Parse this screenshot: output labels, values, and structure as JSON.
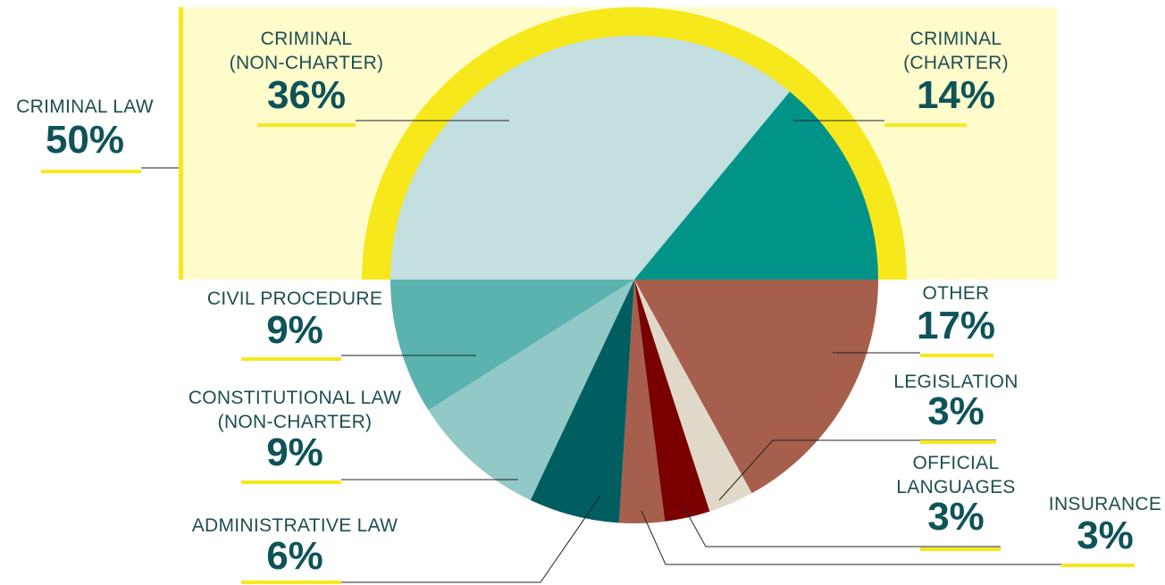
{
  "chart_data": {
    "type": "pie",
    "categories": [
      "CRIMINAL\n(NON-CHARTER)",
      "CRIMINAL\n(CHARTER)",
      "OTHER",
      "LEGISLATION",
      "OFFICIAL\nLANGUAGES",
      "INSURANCE",
      "ADMINISTRATIVE LAW",
      "CONSTITUTIONAL LAW\n(NON-CHARTER)",
      "CIVIL PROCEDURE"
    ],
    "values": [
      36,
      14,
      17,
      3,
      3,
      3,
      6,
      9,
      9
    ],
    "value_labels": [
      "36%",
      "14%",
      "17%",
      "3%",
      "3%",
      "3%",
      "6%",
      "9%",
      "9%"
    ],
    "colors": [
      "#c3dfdf",
      "#009488",
      "#a65e4d",
      "#e0d9c9",
      "#7a0000",
      "#a65e4d",
      "#005e60",
      "#92c8c6",
      "#5ab3ae"
    ],
    "group": {
      "name": "CRIMINAL LAW",
      "value": 50,
      "value_label": "50%",
      "color": "#f7e81c"
    }
  }
}
